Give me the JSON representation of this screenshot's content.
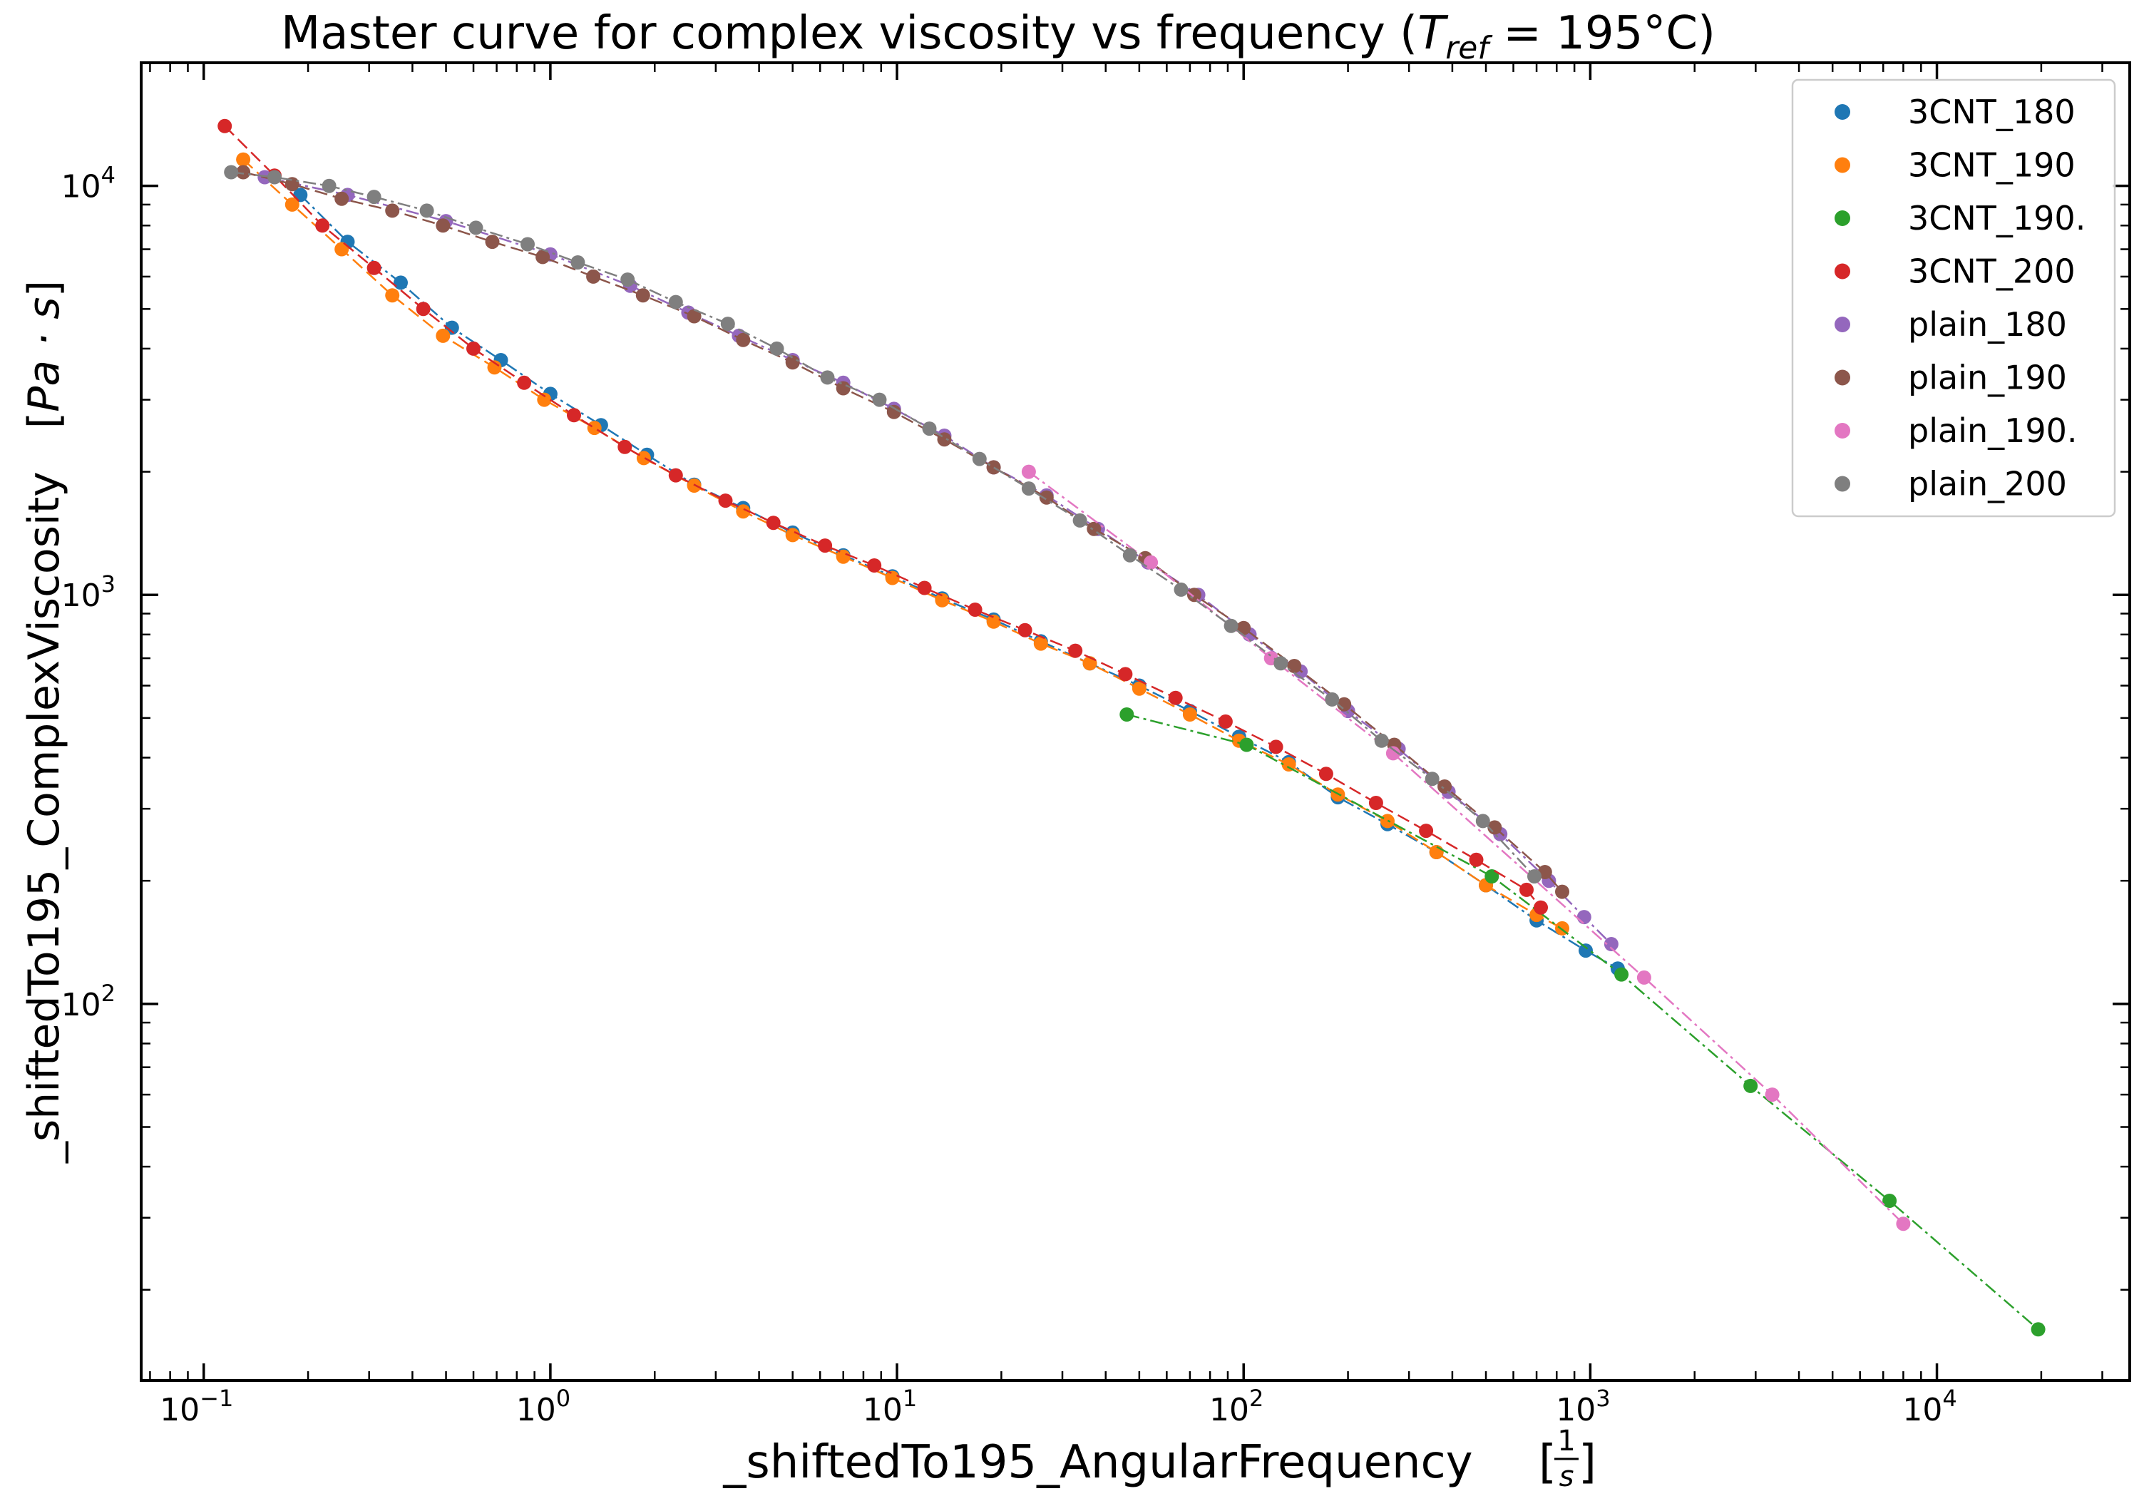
{
  "chart_data": {
    "type": "scatter",
    "title": "Master curve for complex viscosity vs frequency (T_ref = 195°C)",
    "title_main": "Master curve for complex viscosity vs frequency (",
    "title_T": "T",
    "title_sub": "ref",
    "title_rest": " = 195°C)",
    "xlabel": "_shiftedTo195_AngularFrequency",
    "xlabel_unit": "[1/s]",
    "xunit_num": "1",
    "xunit_den": "s",
    "ylabel": "_shiftedTo195_ComplexViscosity",
    "ylabel_unit": "[Pa · s]",
    "ylabel_unit_text": "Pa · s",
    "xscale": "log",
    "yscale": "log",
    "xlim": [
      0.066,
      36000
    ],
    "ylim": [
      12,
      20000
    ],
    "xticks": [
      {
        "value": 0.1,
        "base": "10",
        "exp": "−1"
      },
      {
        "value": 1,
        "base": "10",
        "exp": "0"
      },
      {
        "value": 10,
        "base": "10",
        "exp": "1"
      },
      {
        "value": 100,
        "base": "10",
        "exp": "2"
      },
      {
        "value": 1000,
        "base": "10",
        "exp": "3"
      },
      {
        "value": 10000,
        "base": "10",
        "exp": "4"
      }
    ],
    "yticks": [
      {
        "value": 100,
        "base": "10",
        "exp": "2"
      },
      {
        "value": 1000,
        "base": "10",
        "exp": "3"
      },
      {
        "value": 10000,
        "base": "10",
        "exp": "4"
      }
    ],
    "grid": false,
    "legend_position": "top-right",
    "series": [
      {
        "name": "3CNT_180",
        "color": "#1f77b4",
        "line": "dashdot",
        "x": [
          0.19,
          0.26,
          0.37,
          0.52,
          0.72,
          1.0,
          1.4,
          1.9,
          2.6,
          3.6,
          5.0,
          7.0,
          9.7,
          13.5,
          19,
          26,
          36,
          50,
          70,
          97,
          135,
          187,
          260,
          360,
          500,
          700,
          970,
          1200
        ],
        "y": [
          9500,
          7300,
          5800,
          4500,
          3750,
          3100,
          2600,
          2200,
          1860,
          1630,
          1420,
          1250,
          1110,
          980,
          870,
          770,
          680,
          600,
          520,
          450,
          390,
          320,
          275,
          235,
          195,
          160,
          135,
          122
        ]
      },
      {
        "name": "3CNT_190",
        "color": "#ff7f0e",
        "line": "dashed",
        "x": [
          0.13,
          0.18,
          0.25,
          0.35,
          0.49,
          0.69,
          0.96,
          1.34,
          1.86,
          2.6,
          3.6,
          5.0,
          7.0,
          9.7,
          13.5,
          19,
          26,
          36,
          50,
          70,
          97,
          135,
          187,
          260,
          360,
          500,
          700,
          830
        ],
        "y": [
          11600,
          9000,
          7000,
          5400,
          4300,
          3600,
          3000,
          2560,
          2160,
          1850,
          1600,
          1400,
          1240,
          1100,
          970,
          860,
          760,
          680,
          590,
          510,
          440,
          385,
          325,
          280,
          235,
          195,
          165,
          153
        ]
      },
      {
        "name": "3CNT_190.",
        "color": "#2ca02c",
        "line": "dashdot",
        "x": [
          46,
          102,
          520,
          1230,
          2900,
          7300,
          19600
        ],
        "y": [
          510,
          430,
          205,
          118,
          63,
          33,
          16
        ]
      },
      {
        "name": "3CNT_200",
        "color": "#d62728",
        "line": "dashed",
        "x": [
          0.115,
          0.16,
          0.22,
          0.31,
          0.43,
          0.6,
          0.84,
          1.17,
          1.64,
          2.3,
          3.2,
          4.4,
          6.2,
          8.6,
          12,
          16.8,
          23.4,
          32.7,
          45.6,
          63.6,
          88.7,
          124,
          173,
          241,
          336,
          469,
          655,
          720
        ],
        "y": [
          14000,
          10600,
          8000,
          6300,
          5000,
          4000,
          3300,
          2750,
          2300,
          1960,
          1700,
          1500,
          1320,
          1180,
          1040,
          920,
          820,
          730,
          640,
          560,
          490,
          425,
          365,
          310,
          265,
          225,
          190,
          172
        ]
      },
      {
        "name": "plain_180",
        "color": "#9467bd",
        "line": "dashdot",
        "x": [
          0.15,
          0.26,
          0.5,
          1.0,
          1.7,
          2.5,
          3.5,
          5.0,
          7.0,
          9.8,
          13.7,
          19,
          27,
          38,
          53,
          74,
          104,
          146,
          200,
          280,
          390,
          550,
          760,
          960,
          1150
        ],
        "y": [
          10500,
          9500,
          8200,
          6800,
          5700,
          4900,
          4300,
          3750,
          3300,
          2850,
          2450,
          2050,
          1750,
          1450,
          1200,
          1000,
          800,
          650,
          520,
          420,
          330,
          260,
          200,
          163,
          140
        ]
      },
      {
        "name": "plain_190",
        "color": "#8c564b",
        "line": "dashed",
        "x": [
          0.13,
          0.18,
          0.25,
          0.35,
          0.49,
          0.68,
          0.95,
          1.33,
          1.85,
          2.6,
          3.6,
          5.0,
          7.0,
          9.8,
          13.7,
          19,
          27,
          37,
          52,
          72,
          100,
          140,
          195,
          272,
          380,
          530,
          740,
          830
        ],
        "y": [
          10800,
          10100,
          9300,
          8700,
          8000,
          7300,
          6700,
          6000,
          5400,
          4800,
          4200,
          3700,
          3200,
          2800,
          2400,
          2050,
          1730,
          1450,
          1230,
          1000,
          830,
          670,
          540,
          430,
          340,
          270,
          210,
          188
        ]
      },
      {
        "name": "plain_190.",
        "color": "#e377c2",
        "line": "dashdot",
        "x": [
          24,
          54,
          120,
          270,
          1430,
          3350,
          8000
        ],
        "y": [
          2000,
          1200,
          700,
          410,
          116,
          60,
          29
        ]
      },
      {
        "name": "plain_200",
        "color": "#7f7f7f",
        "line": "dashdot",
        "x": [
          0.12,
          0.16,
          0.23,
          0.31,
          0.44,
          0.61,
          0.86,
          1.2,
          1.67,
          2.3,
          3.25,
          4.5,
          6.3,
          8.9,
          12.4,
          17.3,
          24,
          33.7,
          47,
          66,
          92,
          128,
          180,
          250,
          350,
          490,
          690
        ],
        "y": [
          10800,
          10500,
          10000,
          9400,
          8700,
          7900,
          7200,
          6500,
          5900,
          5200,
          4600,
          4000,
          3400,
          3000,
          2550,
          2150,
          1820,
          1520,
          1250,
          1030,
          840,
          680,
          555,
          440,
          355,
          280,
          205
        ]
      }
    ]
  }
}
